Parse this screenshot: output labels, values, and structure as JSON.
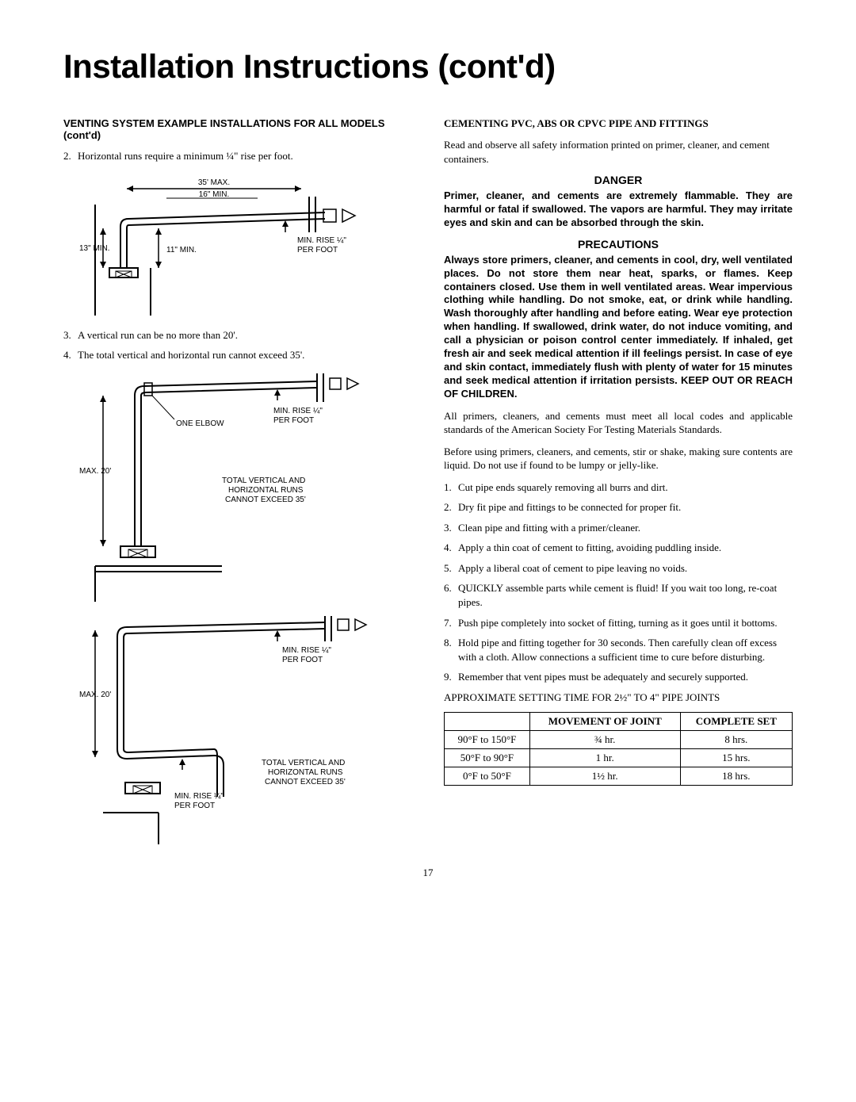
{
  "title": "Installation Instructions (cont'd)",
  "left": {
    "heading": "VENTING SYSTEM EXAMPLE INSTALLATIONS FOR ALL MODELS (cont'd)",
    "item2": "Horizontal runs require a minimum ¼\" rise per foot.",
    "item3": "A vertical run can be no more than 20'.",
    "item4": "The total vertical and horizontal run cannot exceed 35'.",
    "diagram1": {
      "max35": "35' MAX.",
      "min16": "16\" MIN.",
      "min13": "13\" MIN.",
      "min11": "11\" MIN.",
      "rise": "MIN. RISE ¼\"",
      "perfoot": "PER FOOT"
    },
    "diagram2": {
      "max20": "MAX. 20'",
      "oneelbow": "ONE ELBOW",
      "rise": "MIN. RISE ¼\"",
      "perfoot": "PER FOOT",
      "totalnote1": "TOTAL VERTICAL AND",
      "totalnote2": "HORIZONTAL RUNS",
      "totalnote3": "CANNOT EXCEED 35'"
    },
    "diagram3": {
      "max20": "MAX. 20'",
      "rise": "MIN. RISE ¼\"",
      "perfoot": "PER FOOT",
      "rise2": "MIN. RISE ¼\"",
      "perfoot2": "PER FOOT",
      "totalnote1": "TOTAL VERTICAL AND",
      "totalnote2": "HORIZONTAL RUNS",
      "totalnote3": "CANNOT EXCEED 35'"
    }
  },
  "right": {
    "heading": "CEMENTING PVC, ABS OR CPVC PIPE AND FITTINGS",
    "intro": "Read and observe all safety information printed on primer, cleaner, and cement containers.",
    "dangerHeading": "DANGER",
    "dangerText": "Primer, cleaner, and cements are extremely flammable. They are harmful or fatal if swallowed. The vapors are harmful. They may irritate eyes and skin and can be absorbed through the skin.",
    "precautionsHeading": "PRECAUTIONS",
    "precautionsText": "Always store primers, cleaner, and cements in cool, dry, well ventilated places. Do not store them near heat, sparks, or flames. Keep containers closed. Use them in well ventilated areas. Wear impervious clothing while handling. Do not smoke, eat, or drink while handling. Wash thoroughly after handling and before eating. Wear eye protection when handling. If swallowed, drink water, do not induce vomiting, and call a physician or poison control center immediately. If inhaled, get fresh air and seek medical attention if ill feelings persist. In case of eye and skin contact, immediately flush with plenty of water for 15 minutes and seek medical attention if irritation persists. KEEP OUT OR REACH OF CHILDREN.",
    "para1": "All primers, cleaners, and cements must meet all local codes and applicable standards of the American Society For Testing Materials Standards.",
    "para2": "Before using primers, cleaners, and cements, stir or shake, making sure contents are liquid. Do not use if found to be lumpy or jelly-like.",
    "steps": [
      "Cut pipe ends squarely removing all burrs and dirt.",
      "Dry fit pipe and fittings to be connected for proper fit.",
      "Clean pipe and fitting with a primer/cleaner.",
      "Apply a thin coat of cement to fitting, avoiding puddling inside.",
      "Apply a liberal coat of cement to pipe leaving no voids.",
      "QUICKLY assemble parts while cement is fluid! If you wait too long, re-coat pipes.",
      "Push pipe completely into socket of fitting, turning as it goes until it bottoms.",
      "Hold pipe and fitting together for 30 seconds. Then carefully clean off excess with a cloth. Allow connections a sufficient time to cure before disturbing.",
      "Remember that vent pipes must be adequately and securely supported."
    ],
    "tableCaption": "APPROXIMATE SETTING TIME FOR 2½\" TO 4\" PIPE JOINTS",
    "table": {
      "headers": [
        "",
        "MOVEMENT OF JOINT",
        "COMPLETE SET"
      ],
      "rows": [
        [
          "90°F to 150°F",
          "¾ hr.",
          "8 hrs."
        ],
        [
          "50°F to 90°F",
          "1 hr.",
          "15 hrs."
        ],
        [
          "0°F to 50°F",
          "1½ hr.",
          "18 hrs."
        ]
      ]
    }
  },
  "pageNum": "17",
  "colors": {
    "text": "#000000",
    "bg": "#ffffff",
    "line": "#000000"
  }
}
